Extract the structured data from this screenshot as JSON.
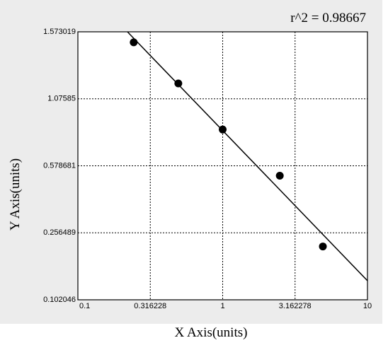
{
  "chart_data": {
    "type": "scatter",
    "annotation": "r^2 = 0.98667",
    "x_label": "X Axis(units)",
    "y_label": "Y Axis(units)",
    "xscale": "log",
    "xlim": [
      0.1,
      10
    ],
    "xticks": [
      0.1,
      0.316228,
      1,
      3.162278,
      10
    ],
    "ylim": [
      0.102046,
      1.573019
    ],
    "yticks": [
      0.102046,
      0.256489,
      0.578681,
      1.07585,
      1.573019
    ],
    "grid": true,
    "points": {
      "x": [
        0.243,
        0.494,
        1,
        2.48,
        4.92
      ],
      "y": [
        1.495,
        1.19,
        0.848,
        0.531,
        0.225
      ],
      "color": "#000000"
    },
    "fit_line": {
      "x": [
        0.22,
        10
      ],
      "y": [
        1.573019,
        0.146
      ],
      "color": "#000000"
    }
  }
}
